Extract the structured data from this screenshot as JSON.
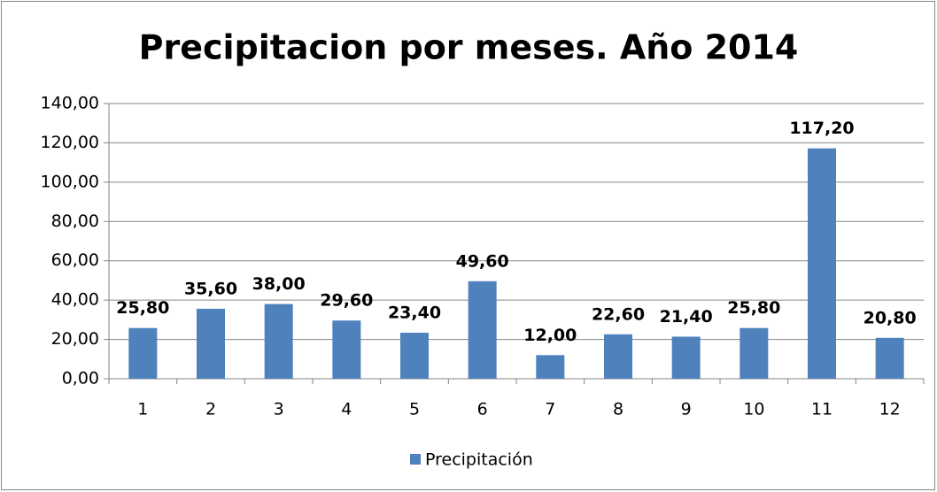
{
  "chart_data": {
    "type": "bar",
    "title": "Precipitacion por meses. Año 2014",
    "categories": [
      "1",
      "2",
      "3",
      "4",
      "5",
      "6",
      "7",
      "8",
      "9",
      "10",
      "11",
      "12"
    ],
    "series": [
      {
        "name": "Precipitación",
        "color": "#4f81bd",
        "values": [
          25.8,
          35.6,
          38.0,
          29.6,
          23.4,
          49.6,
          12.0,
          22.6,
          21.4,
          25.8,
          117.2,
          20.8
        ],
        "value_labels": [
          "25,80",
          "35,60",
          "38,00",
          "29,60",
          "23,40",
          "49,60",
          "12,00",
          "22,60",
          "21,40",
          "25,80",
          "117,20",
          "20,80"
        ]
      }
    ],
    "ylim": [
      0,
      140
    ],
    "yticks": [
      {
        "value": 0,
        "label": "0,00"
      },
      {
        "value": 20,
        "label": "20,00"
      },
      {
        "value": 40,
        "label": "40,00"
      },
      {
        "value": 60,
        "label": "60,00"
      },
      {
        "value": 80,
        "label": "80,00"
      },
      {
        "value": 100,
        "label": "100,00"
      },
      {
        "value": 120,
        "label": "120,00"
      },
      {
        "value": 140,
        "label": "140,00"
      }
    ],
    "grid": true,
    "legend": "bottom"
  }
}
